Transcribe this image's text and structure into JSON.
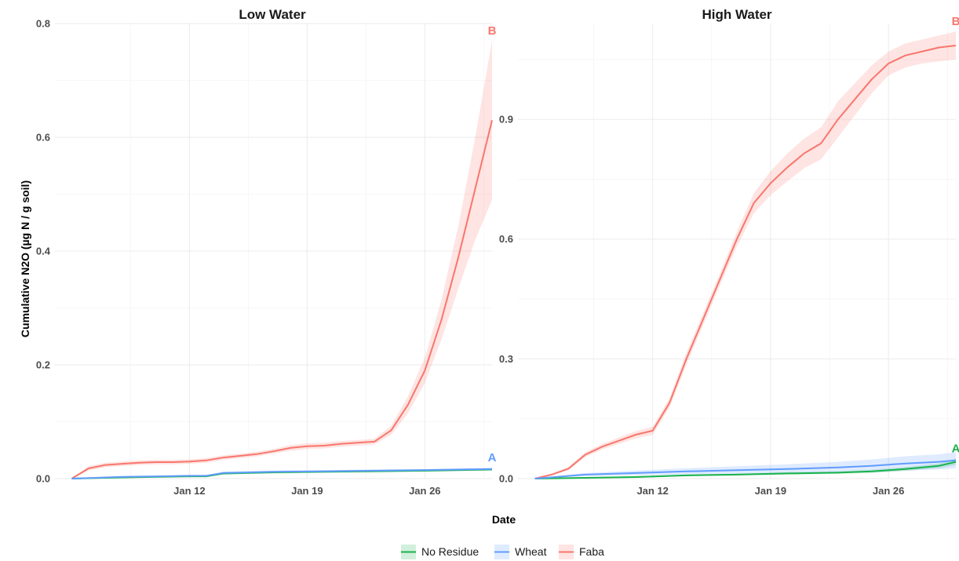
{
  "chart_data": {
    "type": "line",
    "xlabel": "Date",
    "ylabel": "Cumulative N2O (µg N / g soil)",
    "x_tick_labels": [
      "Jan 12",
      "Jan 19",
      "Jan 26"
    ],
    "x_tick_dates": [
      "2022-01-12",
      "2022-01-19",
      "2022-01-26"
    ],
    "xlim": [
      "2022-01-04",
      "2022-01-30"
    ],
    "grid": true,
    "legend_position": "bottom",
    "legend": [
      {
        "name": "No Residue",
        "color": "#19b24d"
      },
      {
        "name": "Wheat",
        "color": "#619cff"
      },
      {
        "name": "Faba",
        "color": "#f8766d"
      }
    ],
    "panels": [
      {
        "title": "Low Water",
        "ylim": [
          0,
          0.8
        ],
        "y_ticks": [
          0.0,
          0.2,
          0.4,
          0.6,
          0.8
        ],
        "y_tick_labels": [
          "0.0",
          "0.2",
          "0.4",
          "0.6",
          "0.8"
        ],
        "series": [
          {
            "name": "Faba",
            "color": "#f8766d",
            "annotation": "B",
            "x": [
              "2022-01-05",
              "2022-01-06",
              "2022-01-07",
              "2022-01-08",
              "2022-01-09",
              "2022-01-10",
              "2022-01-11",
              "2022-01-12",
              "2022-01-13",
              "2022-01-14",
              "2022-01-15",
              "2022-01-16",
              "2022-01-17",
              "2022-01-18",
              "2022-01-19",
              "2022-01-20",
              "2022-01-21",
              "2022-01-22",
              "2022-01-23",
              "2022-01-24",
              "2022-01-25",
              "2022-01-26",
              "2022-01-27",
              "2022-01-28",
              "2022-01-29",
              "2022-01-30"
            ],
            "y": [
              0.0,
              0.018,
              0.024,
              0.026,
              0.028,
              0.029,
              0.029,
              0.03,
              0.032,
              0.037,
              0.04,
              0.043,
              0.048,
              0.054,
              0.057,
              0.058,
              0.061,
              0.063,
              0.065,
              0.085,
              0.13,
              0.19,
              0.28,
              0.39,
              0.51,
              0.63
            ],
            "lower": [
              0.0,
              0.014,
              0.02,
              0.022,
              0.024,
              0.025,
              0.025,
              0.026,
              0.028,
              0.033,
              0.036,
              0.039,
              0.044,
              0.049,
              0.052,
              0.053,
              0.056,
              0.058,
              0.06,
              0.077,
              0.115,
              0.168,
              0.245,
              0.335,
              0.42,
              0.49
            ],
            "upper": [
              0.0,
              0.022,
              0.028,
              0.03,
              0.032,
              0.033,
              0.033,
              0.034,
              0.036,
              0.041,
              0.044,
              0.047,
              0.052,
              0.059,
              0.062,
              0.063,
              0.066,
              0.068,
              0.07,
              0.093,
              0.145,
              0.212,
              0.315,
              0.445,
              0.6,
              0.77
            ]
          },
          {
            "name": "No Residue",
            "color": "#19b24d",
            "annotation": "",
            "x": [
              "2022-01-05",
              "2022-01-08",
              "2022-01-10",
              "2022-01-12",
              "2022-01-13",
              "2022-01-14",
              "2022-01-17",
              "2022-01-20",
              "2022-01-23",
              "2022-01-26",
              "2022-01-30"
            ],
            "y": [
              0.0,
              0.002,
              0.003,
              0.004,
              0.004,
              0.009,
              0.011,
              0.012,
              0.013,
              0.014,
              0.016
            ],
            "lower": [
              0.0,
              0.001,
              0.002,
              0.003,
              0.003,
              0.007,
              0.009,
              0.01,
              0.011,
              0.012,
              0.014
            ],
            "upper": [
              0.0,
              0.003,
              0.004,
              0.005,
              0.005,
              0.011,
              0.013,
              0.014,
              0.015,
              0.016,
              0.018
            ]
          },
          {
            "name": "Wheat",
            "color": "#619cff",
            "annotation": "A",
            "x": [
              "2022-01-05",
              "2022-01-08",
              "2022-01-10",
              "2022-01-12",
              "2022-01-13",
              "2022-01-14",
              "2022-01-17",
              "2022-01-20",
              "2022-01-23",
              "2022-01-26",
              "2022-01-30"
            ],
            "y": [
              0.0,
              0.003,
              0.004,
              0.005,
              0.005,
              0.01,
              0.012,
              0.013,
              0.014,
              0.015,
              0.017
            ],
            "lower": [
              0.0,
              0.002,
              0.003,
              0.004,
              0.004,
              0.008,
              0.01,
              0.011,
              0.012,
              0.013,
              0.015
            ],
            "upper": [
              0.0,
              0.004,
              0.005,
              0.006,
              0.006,
              0.012,
              0.014,
              0.015,
              0.016,
              0.017,
              0.019
            ]
          }
        ]
      },
      {
        "title": "High Water",
        "ylim": [
          0,
          1.14
        ],
        "y_ticks": [
          0.0,
          0.3,
          0.6,
          0.9
        ],
        "y_tick_labels": [
          "0.0",
          "0.3",
          "0.6",
          "0.9"
        ],
        "series": [
          {
            "name": "Faba",
            "color": "#f8766d",
            "annotation": "B",
            "x": [
              "2022-01-05",
              "2022-01-06",
              "2022-01-07",
              "2022-01-08",
              "2022-01-09",
              "2022-01-10",
              "2022-01-11",
              "2022-01-12",
              "2022-01-13",
              "2022-01-14",
              "2022-01-15",
              "2022-01-16",
              "2022-01-17",
              "2022-01-18",
              "2022-01-19",
              "2022-01-20",
              "2022-01-21",
              "2022-01-22",
              "2022-01-23",
              "2022-01-24",
              "2022-01-25",
              "2022-01-26",
              "2022-01-27",
              "2022-01-28",
              "2022-01-29",
              "2022-01-30"
            ],
            "y": [
              0.0,
              0.01,
              0.025,
              0.06,
              0.08,
              0.095,
              0.11,
              0.12,
              0.19,
              0.3,
              0.4,
              0.5,
              0.6,
              0.69,
              0.74,
              0.78,
              0.815,
              0.84,
              0.9,
              0.95,
              1.0,
              1.04,
              1.06,
              1.07,
              1.08,
              1.085
            ],
            "lower": [
              0.0,
              0.008,
              0.021,
              0.054,
              0.073,
              0.087,
              0.101,
              0.11,
              0.178,
              0.285,
              0.385,
              0.485,
              0.582,
              0.665,
              0.71,
              0.745,
              0.778,
              0.8,
              0.855,
              0.91,
              0.965,
              1.01,
              1.03,
              1.04,
              1.045,
              1.05
            ],
            "upper": [
              0.0,
              0.012,
              0.029,
              0.066,
              0.087,
              0.103,
              0.119,
              0.13,
              0.202,
              0.315,
              0.415,
              0.515,
              0.618,
              0.715,
              0.77,
              0.815,
              0.852,
              0.88,
              0.945,
              0.99,
              1.035,
              1.07,
              1.09,
              1.1,
              1.11,
              1.12
            ]
          },
          {
            "name": "No Residue",
            "color": "#19b24d",
            "annotation": "A",
            "x": [
              "2022-01-05",
              "2022-01-08",
              "2022-01-11",
              "2022-01-14",
              "2022-01-17",
              "2022-01-20",
              "2022-01-23",
              "2022-01-25",
              "2022-01-27",
              "2022-01-29",
              "2022-01-30"
            ],
            "y": [
              0.0,
              0.002,
              0.004,
              0.008,
              0.01,
              0.013,
              0.015,
              0.018,
              0.024,
              0.032,
              0.042
            ],
            "lower": [
              0.0,
              0.001,
              0.002,
              0.006,
              0.008,
              0.01,
              0.012,
              0.014,
              0.019,
              0.026,
              0.034
            ],
            "upper": [
              0.0,
              0.003,
              0.006,
              0.01,
              0.012,
              0.016,
              0.018,
              0.022,
              0.029,
              0.038,
              0.05
            ]
          },
          {
            "name": "Wheat",
            "color": "#619cff",
            "annotation": "",
            "x": [
              "2022-01-05",
              "2022-01-08",
              "2022-01-11",
              "2022-01-14",
              "2022-01-17",
              "2022-01-20",
              "2022-01-23",
              "2022-01-25",
              "2022-01-27",
              "2022-01-29",
              "2022-01-30"
            ],
            "y": [
              0.0,
              0.01,
              0.014,
              0.018,
              0.021,
              0.024,
              0.028,
              0.032,
              0.038,
              0.042,
              0.046
            ],
            "lower": [
              0.0,
              0.006,
              0.008,
              0.01,
              0.011,
              0.012,
              0.014,
              0.016,
              0.02,
              0.023,
              0.026
            ],
            "upper": [
              0.0,
              0.014,
              0.02,
              0.026,
              0.031,
              0.036,
              0.042,
              0.048,
              0.056,
              0.061,
              0.066
            ]
          }
        ]
      }
    ]
  }
}
